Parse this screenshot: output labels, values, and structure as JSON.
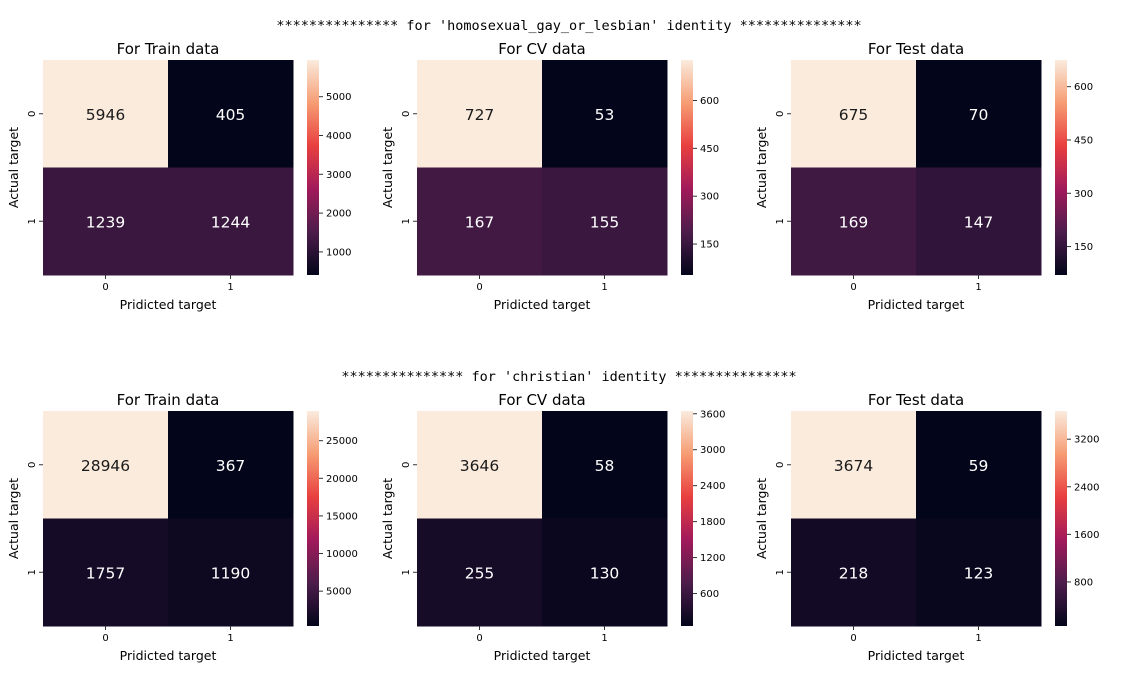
{
  "sections": [
    {
      "title": "*************** for 'homosexual_gay_or_lesbian' identity ***************"
    },
    {
      "title": "*************** for 'christian' identity ***************"
    }
  ],
  "chart_data": [
    {
      "type": "heatmap",
      "title": "For Train data",
      "xlabel": "Pridicted target",
      "ylabel": "Actual target",
      "x_ticks": [
        "0",
        "1"
      ],
      "y_ticks": [
        "0",
        "1"
      ],
      "values": [
        [
          5946,
          405
        ],
        [
          1239,
          1244
        ]
      ],
      "colorbar_ticks": [
        "1000",
        "2000",
        "3000",
        "4000",
        "5000"
      ],
      "colorbar_tick_values": [
        1000,
        2000,
        3000,
        4000,
        5000
      ],
      "vmin": 405,
      "vmax": 5946
    },
    {
      "type": "heatmap",
      "title": "For CV data",
      "xlabel": "Pridicted target",
      "ylabel": "Actual target",
      "x_ticks": [
        "0",
        "1"
      ],
      "y_ticks": [
        "0",
        "1"
      ],
      "values": [
        [
          727,
          53
        ],
        [
          167,
          155
        ]
      ],
      "colorbar_ticks": [
        "150",
        "300",
        "450",
        "600"
      ],
      "colorbar_tick_values": [
        150,
        300,
        450,
        600
      ],
      "vmin": 53,
      "vmax": 727
    },
    {
      "type": "heatmap",
      "title": "For Test data",
      "xlabel": "Pridicted target",
      "ylabel": "Actual target",
      "x_ticks": [
        "0",
        "1"
      ],
      "y_ticks": [
        "0",
        "1"
      ],
      "values": [
        [
          675,
          70
        ],
        [
          169,
          147
        ]
      ],
      "colorbar_ticks": [
        "150",
        "300",
        "450",
        "600"
      ],
      "colorbar_tick_values": [
        150,
        300,
        450,
        600
      ],
      "vmin": 70,
      "vmax": 675
    },
    {
      "type": "heatmap",
      "title": "For Train data",
      "xlabel": "Pridicted target",
      "ylabel": "Actual target",
      "x_ticks": [
        "0",
        "1"
      ],
      "y_ticks": [
        "0",
        "1"
      ],
      "values": [
        [
          28946,
          367
        ],
        [
          1757,
          1190
        ]
      ],
      "colorbar_ticks": [
        "5000",
        "10000",
        "15000",
        "20000",
        "25000"
      ],
      "colorbar_tick_values": [
        5000,
        10000,
        15000,
        20000,
        25000
      ],
      "vmin": 367,
      "vmax": 28946
    },
    {
      "type": "heatmap",
      "title": "For CV data",
      "xlabel": "Pridicted target",
      "ylabel": "Actual target",
      "x_ticks": [
        "0",
        "1"
      ],
      "y_ticks": [
        "0",
        "1"
      ],
      "values": [
        [
          3646,
          58
        ],
        [
          255,
          130
        ]
      ],
      "colorbar_ticks": [
        "600",
        "1200",
        "1800",
        "2400",
        "3000",
        "3600"
      ],
      "colorbar_tick_values": [
        600,
        1200,
        1800,
        2400,
        3000,
        3600
      ],
      "vmin": 58,
      "vmax": 3646
    },
    {
      "type": "heatmap",
      "title": "For Test data",
      "xlabel": "Pridicted target",
      "ylabel": "Actual target",
      "x_ticks": [
        "0",
        "1"
      ],
      "y_ticks": [
        "0",
        "1"
      ],
      "values": [
        [
          3674,
          59
        ],
        [
          218,
          123
        ]
      ],
      "colorbar_ticks": [
        "800",
        "1600",
        "2400",
        "3200"
      ],
      "colorbar_tick_values": [
        800,
        1600,
        2400,
        3200
      ],
      "vmin": 59,
      "vmax": 3674
    }
  ],
  "colormap": [
    "#03051a",
    "#4c1d4b",
    "#a11a5b",
    "#e83f3f",
    "#f69c73",
    "#faebdd"
  ]
}
